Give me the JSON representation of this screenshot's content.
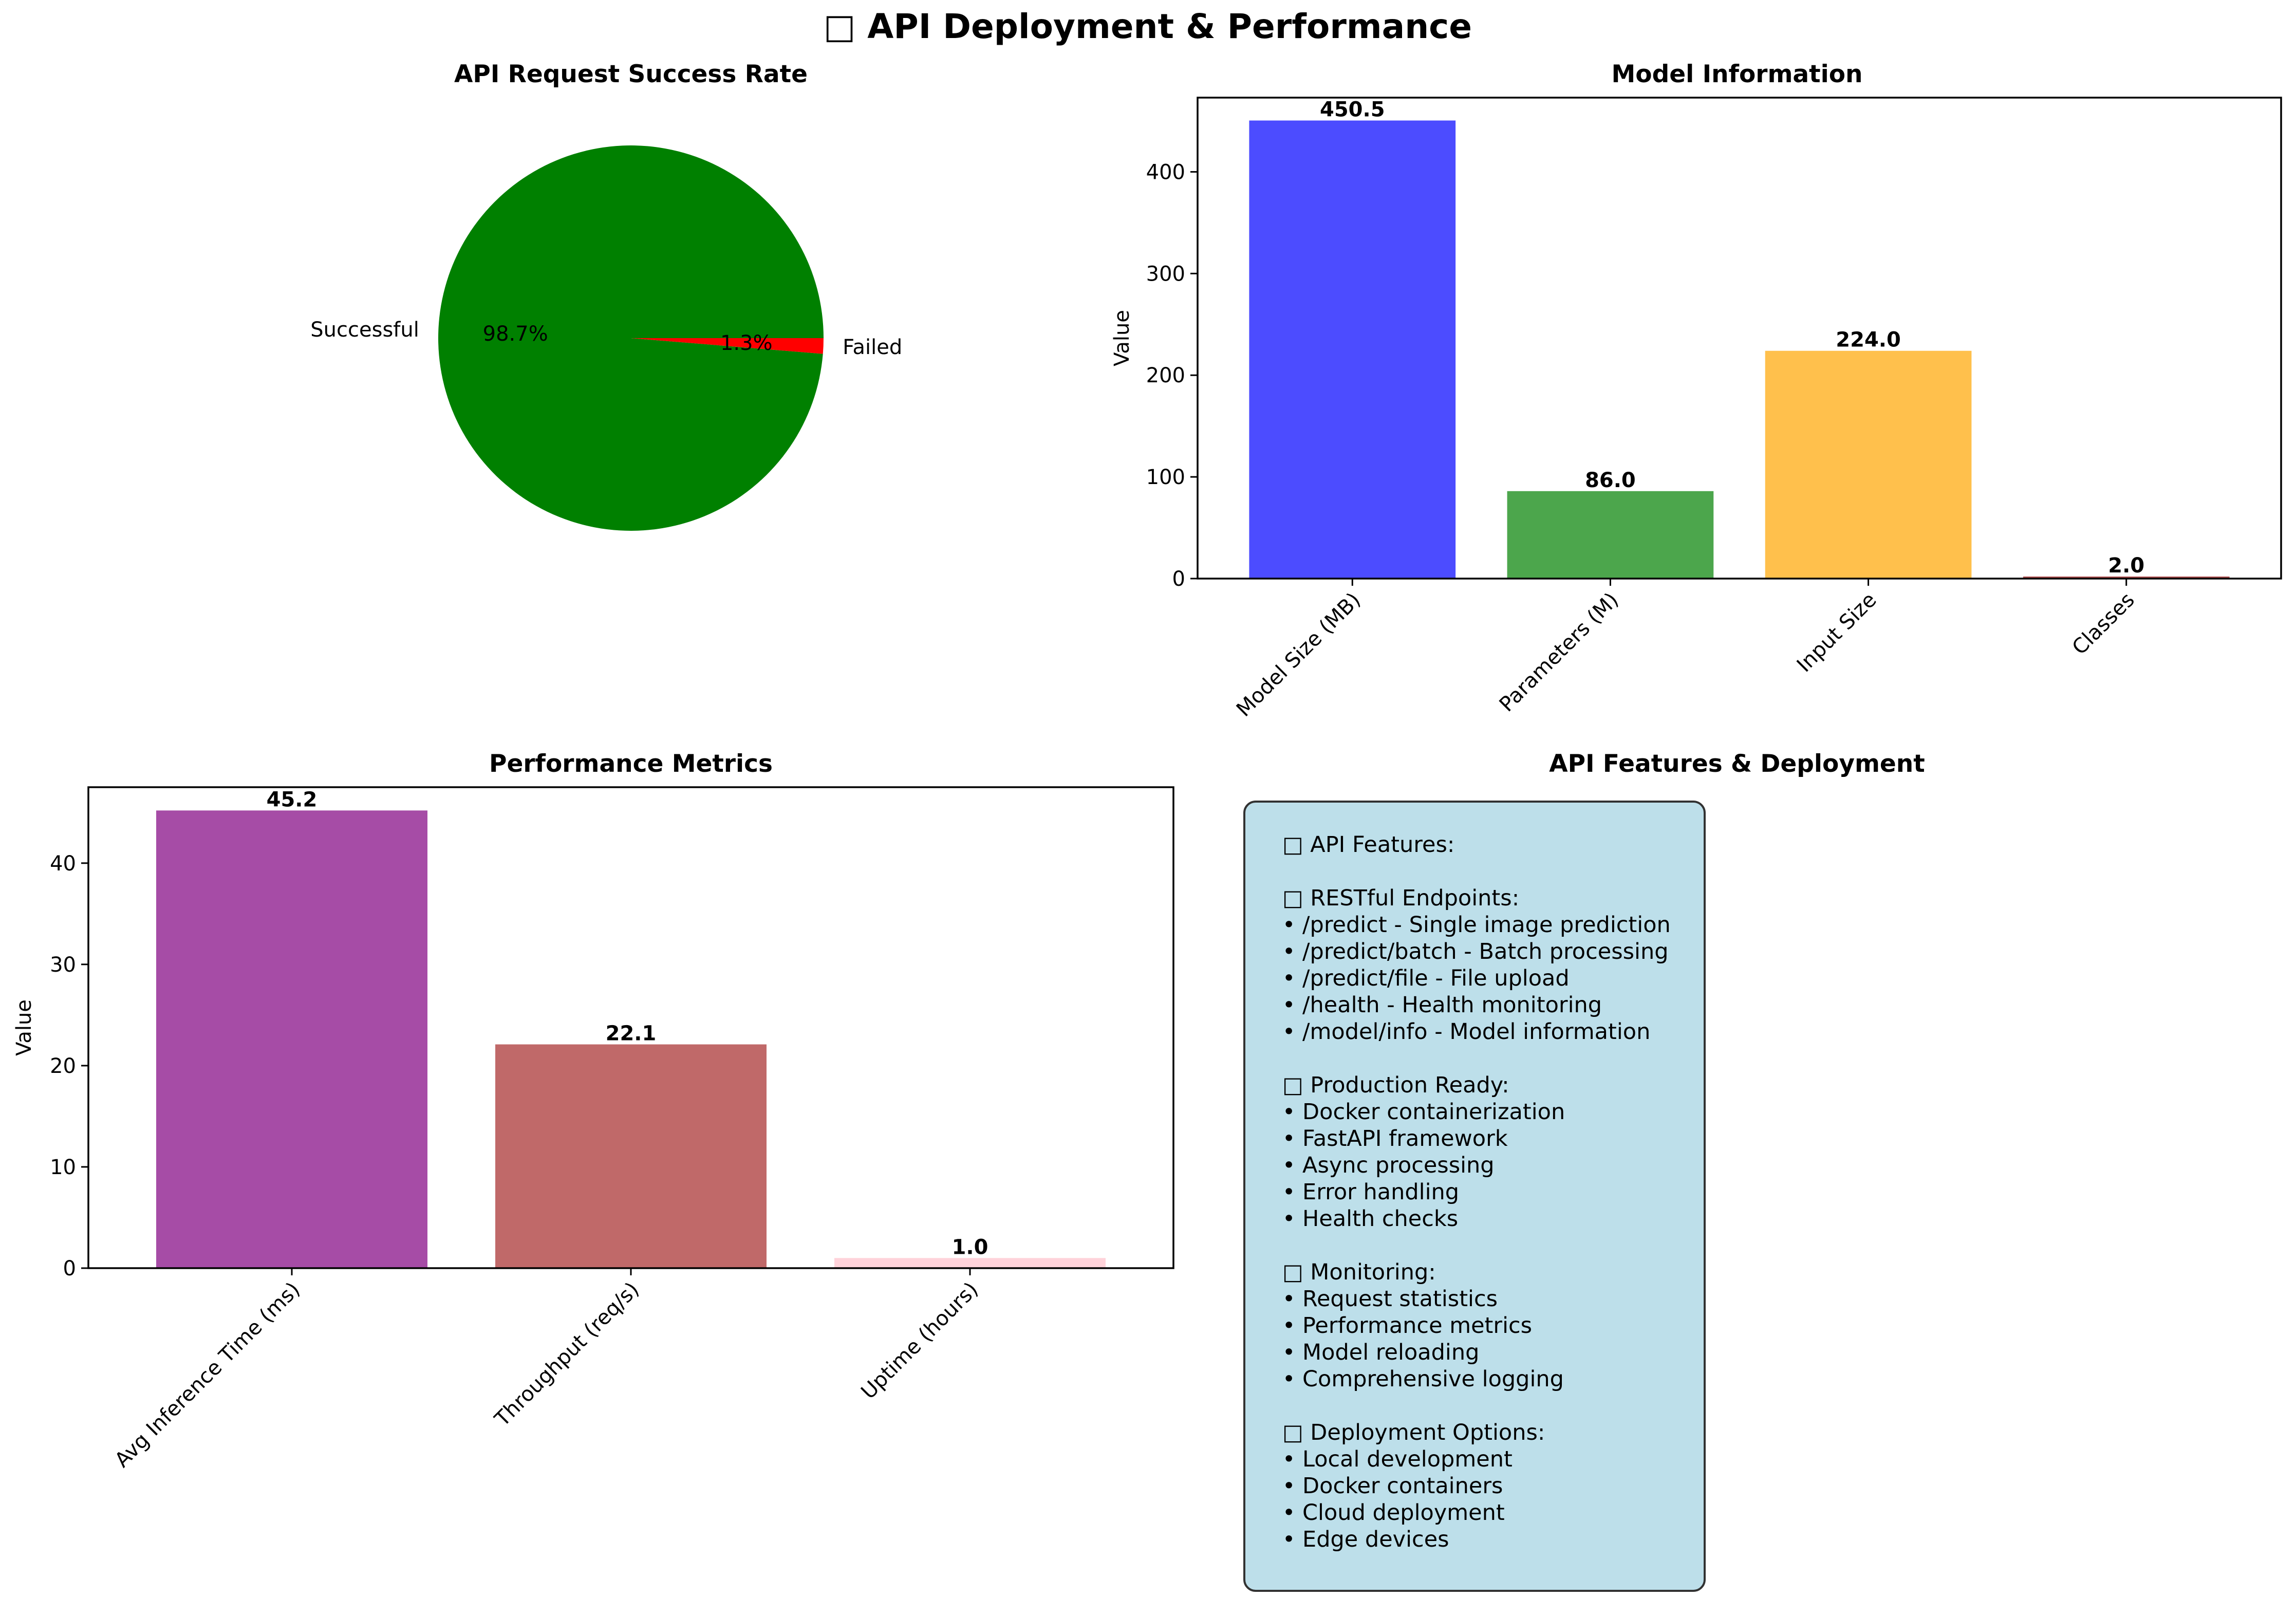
{
  "figure": {
    "title_icon": "□",
    "title": "API Deployment & Performance"
  },
  "chart_data": [
    {
      "type": "pie",
      "title": "API Request Success Rate",
      "labels": [
        "Successful",
        "Failed"
      ],
      "values": [
        98.7,
        1.3
      ],
      "autopct_labels": [
        "98.7%",
        "1.3%"
      ],
      "colors": [
        "#008000",
        "#ff0000"
      ]
    },
    {
      "type": "bar",
      "title": "Model Information",
      "categories": [
        "Model Size (MB)",
        "Parameters (M)",
        "Input Size",
        "Classes"
      ],
      "values": [
        450.5,
        86.0,
        224.0,
        2.0
      ],
      "value_labels": [
        "450.5",
        "86.0",
        "224.0",
        "2.0"
      ],
      "colors": [
        "#0000ff",
        "#008000",
        "#ffa500",
        "#8b0000"
      ],
      "ylabel": "Value",
      "ylim": [
        0,
        473
      ],
      "yticks": [
        0,
        100,
        200,
        300,
        400
      ],
      "ytick_labels": [
        "0",
        "100",
        "200",
        "300",
        "400"
      ]
    },
    {
      "type": "bar",
      "title": "Performance Metrics",
      "categories": [
        "Avg Inference Time (ms)",
        "Throughput (req/s)",
        "Uptime (hours)"
      ],
      "values": [
        45.2,
        22.1,
        1.0
      ],
      "value_labels": [
        "45.2",
        "22.1",
        "1.0"
      ],
      "colors": [
        "#800080",
        "#a52a2a",
        "#ffc0cb"
      ],
      "ylabel": "Value",
      "ylim": [
        0,
        47.5
      ],
      "yticks": [
        0,
        10,
        20,
        30,
        40
      ],
      "ytick_labels": [
        "0",
        "10",
        "20",
        "30",
        "40"
      ]
    }
  ],
  "features_panel": {
    "title": "API Features & Deployment",
    "lines": [
      "□ API Features:",
      "",
      "□ RESTful Endpoints:",
      "• /predict - Single image prediction",
      "• /predict/batch - Batch processing",
      "• /predict/file - File upload",
      "• /health - Health monitoring",
      "• /model/info - Model information",
      "",
      "□ Production Ready:",
      "• Docker containerization",
      "• FastAPI framework",
      "• Async processing",
      "• Error handling",
      "• Health checks",
      "",
      "□ Monitoring:",
      "• Request statistics",
      "• Performance metrics",
      "• Model reloading",
      "• Comprehensive logging",
      "",
      "□ Deployment Options:",
      "• Local development",
      "• Docker containers",
      "• Cloud deployment",
      "• Edge devices"
    ]
  }
}
